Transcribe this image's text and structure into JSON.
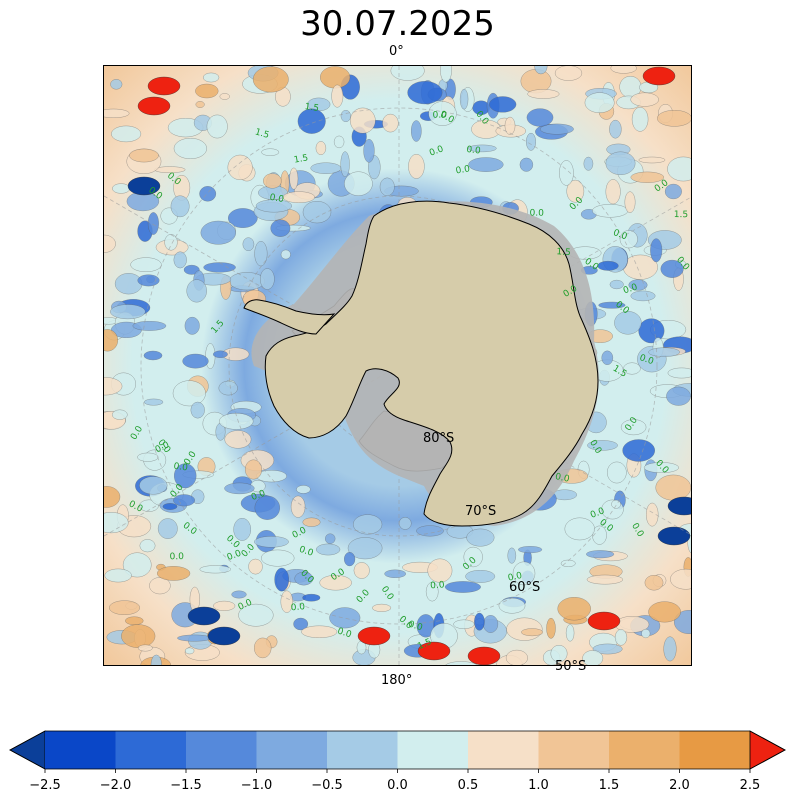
{
  "title": "30.07.2025",
  "meridians": {
    "top": "0°",
    "bottom": "180°"
  },
  "latitude_labels": [
    "80°S",
    "70°S",
    "60°S",
    "50°S"
  ],
  "contour_label_text": "0.0",
  "contour_label_text_alt": "1.5",
  "colors": {
    "land": "#d6ccaa",
    "ice_shelf": "#b4b4b4",
    "contour_label": "#1f9e2c",
    "background_ocean": "#d2eeee"
  },
  "colorbar": {
    "ticks": [
      "−2.5",
      "−2.0",
      "−1.5",
      "−1.0",
      "−0.5",
      "0.0",
      "0.5",
      "1.0",
      "1.5",
      "2.0",
      "2.5"
    ],
    "bins": [
      {
        "from": -2.5,
        "to": -2.0,
        "color": "#0a47c8"
      },
      {
        "from": -2.0,
        "to": -1.5,
        "color": "#2d6ad6"
      },
      {
        "from": -1.5,
        "to": -1.0,
        "color": "#5589db"
      },
      {
        "from": -1.0,
        "to": -0.5,
        "color": "#7eaae0"
      },
      {
        "from": -0.5,
        "to": 0.0,
        "color": "#a5cbe6"
      },
      {
        "from": 0.0,
        "to": 0.5,
        "color": "#d2eeee"
      },
      {
        "from": 0.5,
        "to": 1.0,
        "color": "#f6e0c8"
      },
      {
        "from": 1.0,
        "to": 1.5,
        "color": "#f1c596"
      },
      {
        "from": 1.5,
        "to": 2.0,
        "color": "#ebb06c"
      },
      {
        "from": 2.0,
        "to": 2.5,
        "color": "#e79a44"
      }
    ],
    "under_color": "#0b3f99",
    "over_color": "#ee2211"
  }
}
